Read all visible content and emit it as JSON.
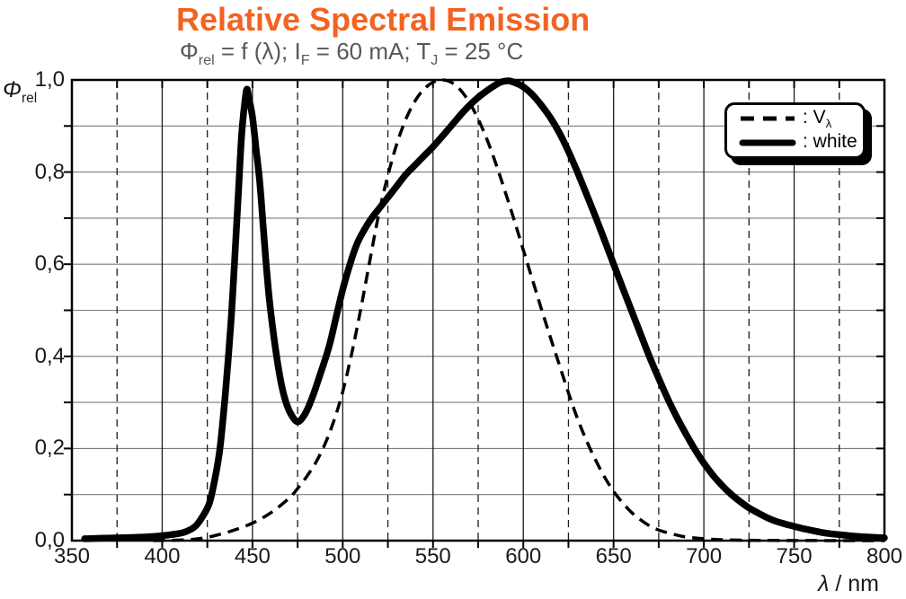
{
  "colors": {
    "title": "#F26322",
    "subtitle": "#58595B",
    "curve": "#000000",
    "grid_horizontal": "#7a7a7a",
    "grid_vertical": "#1c1c1c",
    "frame": "#000000",
    "background": "#ffffff"
  },
  "header": {
    "title": "Relative Spectral Emission",
    "subtitle": {
      "phi": "Φ",
      "phi_sub": "rel",
      "seg1": " = f (λ); I",
      "sub1": "F",
      "seg2": " = 60 mA; T",
      "sub2": "J",
      "seg3": " = 25 °C"
    }
  },
  "axes": {
    "y_label": {
      "symbol": "Φ",
      "sub": "rel"
    },
    "x_label": {
      "symbol": "λ",
      "rest": " / nm"
    },
    "x_tick_labels": [
      "350",
      "400",
      "450",
      "500",
      "550",
      "600",
      "650",
      "700",
      "750",
      "800"
    ],
    "x_tick_values": [
      350,
      400,
      450,
      500,
      550,
      600,
      650,
      700,
      750,
      800
    ],
    "y_tick_labels": [
      "1,0",
      "0,8",
      "0,6",
      "0,4",
      "0,2",
      "0,0"
    ],
    "y_tick_values": [
      1.0,
      0.8,
      0.6,
      0.4,
      0.2,
      0.0
    ]
  },
  "legend": {
    "items": [
      {
        "name": "v-lambda",
        "style": "dashed",
        "prefix": ": V",
        "sub": "λ"
      },
      {
        "name": "white",
        "style": "solid",
        "prefix": ": white",
        "sub": ""
      }
    ]
  },
  "chart_data": {
    "type": "line",
    "title": "Relative Spectral Emission",
    "condition": "Φrel = f (λ); IF = 60 mA; TJ = 25 °C",
    "xlabel": "λ / nm",
    "ylabel": "Φrel",
    "xlim": [
      350,
      800
    ],
    "ylim": [
      0,
      1
    ],
    "x_major_grid_step": 50,
    "x_minor_grid_step": 25,
    "y_grid_step": 0.1,
    "grid": "on",
    "legend_position": "top-right",
    "series": [
      {
        "name": "Vλ",
        "style": "dashed",
        "points": [
          [
            395,
            0.0002
          ],
          [
            400,
            0.0004
          ],
          [
            410,
            0.0012
          ],
          [
            420,
            0.004
          ],
          [
            430,
            0.0116
          ],
          [
            440,
            0.023
          ],
          [
            450,
            0.038
          ],
          [
            460,
            0.06
          ],
          [
            470,
            0.091
          ],
          [
            475,
            0.113
          ],
          [
            480,
            0.139
          ],
          [
            485,
            0.169
          ],
          [
            490,
            0.208
          ],
          [
            495,
            0.259
          ],
          [
            500,
            0.323
          ],
          [
            505,
            0.407
          ],
          [
            510,
            0.503
          ],
          [
            515,
            0.608
          ],
          [
            520,
            0.71
          ],
          [
            525,
            0.793
          ],
          [
            530,
            0.862
          ],
          [
            535,
            0.915
          ],
          [
            540,
            0.954
          ],
          [
            545,
            0.98
          ],
          [
            550,
            0.995
          ],
          [
            555,
            1.0
          ],
          [
            560,
            0.995
          ],
          [
            565,
            0.979
          ],
          [
            570,
            0.952
          ],
          [
            575,
            0.915
          ],
          [
            580,
            0.87
          ],
          [
            585,
            0.816
          ],
          [
            590,
            0.757
          ],
          [
            595,
            0.695
          ],
          [
            600,
            0.631
          ],
          [
            605,
            0.567
          ],
          [
            610,
            0.503
          ],
          [
            615,
            0.441
          ],
          [
            620,
            0.381
          ],
          [
            625,
            0.321
          ],
          [
            630,
            0.265
          ],
          [
            635,
            0.217
          ],
          [
            640,
            0.175
          ],
          [
            645,
            0.138
          ],
          [
            650,
            0.107
          ],
          [
            655,
            0.082
          ],
          [
            660,
            0.061
          ],
          [
            665,
            0.045
          ],
          [
            670,
            0.032
          ],
          [
            675,
            0.023
          ],
          [
            680,
            0.017
          ],
          [
            685,
            0.012
          ],
          [
            690,
            0.008
          ],
          [
            700,
            0.004
          ],
          [
            710,
            0.002
          ],
          [
            720,
            0.001
          ],
          [
            730,
            0.0005
          ],
          [
            740,
            0.0003
          ],
          [
            760,
            0.0001
          ],
          [
            780,
            0
          ],
          [
            800,
            0
          ]
        ]
      },
      {
        "name": "white",
        "style": "solid",
        "points": [
          [
            357,
            0.004
          ],
          [
            365,
            0.005
          ],
          [
            375,
            0.006
          ],
          [
            385,
            0.007
          ],
          [
            395,
            0.009
          ],
          [
            405,
            0.013
          ],
          [
            412,
            0.018
          ],
          [
            418,
            0.03
          ],
          [
            422,
            0.05
          ],
          [
            426,
            0.08
          ],
          [
            429,
            0.13
          ],
          [
            432,
            0.2
          ],
          [
            435,
            0.32
          ],
          [
            438,
            0.47
          ],
          [
            440,
            0.6
          ],
          [
            442,
            0.74
          ],
          [
            444,
            0.88
          ],
          [
            446,
            0.96
          ],
          [
            447,
            0.98
          ],
          [
            448,
            0.96
          ],
          [
            450,
            0.92
          ],
          [
            452,
            0.85
          ],
          [
            454,
            0.78
          ],
          [
            456,
            0.68
          ],
          [
            458,
            0.58
          ],
          [
            460,
            0.5
          ],
          [
            463,
            0.41
          ],
          [
            466,
            0.34
          ],
          [
            469,
            0.295
          ],
          [
            472,
            0.27
          ],
          [
            475,
            0.258
          ],
          [
            478,
            0.268
          ],
          [
            481,
            0.29
          ],
          [
            484,
            0.32
          ],
          [
            487,
            0.355
          ],
          [
            490,
            0.39
          ],
          [
            493,
            0.43
          ],
          [
            496,
            0.48
          ],
          [
            500,
            0.545
          ],
          [
            504,
            0.6
          ],
          [
            508,
            0.645
          ],
          [
            512,
            0.675
          ],
          [
            516,
            0.7
          ],
          [
            520,
            0.72
          ],
          [
            525,
            0.745
          ],
          [
            530,
            0.77
          ],
          [
            535,
            0.795
          ],
          [
            540,
            0.815
          ],
          [
            545,
            0.835
          ],
          [
            550,
            0.855
          ],
          [
            555,
            0.877
          ],
          [
            560,
            0.9
          ],
          [
            565,
            0.923
          ],
          [
            570,
            0.944
          ],
          [
            575,
            0.962
          ],
          [
            580,
            0.977
          ],
          [
            585,
            0.99
          ],
          [
            588,
            0.996
          ],
          [
            592,
            0.998
          ],
          [
            596,
            0.993
          ],
          [
            600,
            0.985
          ],
          [
            605,
            0.968
          ],
          [
            610,
            0.945
          ],
          [
            615,
            0.918
          ],
          [
            620,
            0.885
          ],
          [
            625,
            0.845
          ],
          [
            630,
            0.8
          ],
          [
            635,
            0.752
          ],
          [
            640,
            0.703
          ],
          [
            645,
            0.652
          ],
          [
            650,
            0.6
          ],
          [
            655,
            0.549
          ],
          [
            660,
            0.498
          ],
          [
            665,
            0.448
          ],
          [
            670,
            0.398
          ],
          [
            675,
            0.352
          ],
          [
            680,
            0.308
          ],
          [
            685,
            0.268
          ],
          [
            690,
            0.232
          ],
          [
            695,
            0.198
          ],
          [
            700,
            0.168
          ],
          [
            705,
            0.142
          ],
          [
            710,
            0.12
          ],
          [
            715,
            0.101
          ],
          [
            720,
            0.085
          ],
          [
            725,
            0.071
          ],
          [
            730,
            0.06
          ],
          [
            735,
            0.05
          ],
          [
            740,
            0.042
          ],
          [
            745,
            0.036
          ],
          [
            750,
            0.031
          ],
          [
            755,
            0.026
          ],
          [
            760,
            0.022
          ],
          [
            765,
            0.018
          ],
          [
            770,
            0.015
          ],
          [
            775,
            0.013
          ],
          [
            780,
            0.011
          ],
          [
            790,
            0.008
          ],
          [
            800,
            0.006
          ]
        ]
      }
    ]
  }
}
